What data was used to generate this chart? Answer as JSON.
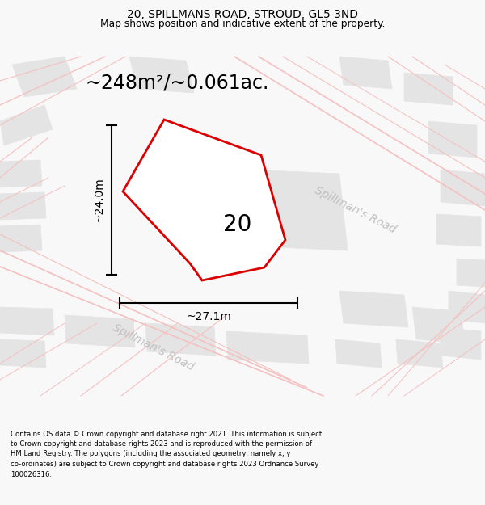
{
  "title": "20, SPILLMANS ROAD, STROUD, GL5 3ND",
  "subtitle": "Map shows position and indicative extent of the property.",
  "area_text": "~248m²/~0.061ac.",
  "label_number": "20",
  "dim_width": "~27.1m",
  "dim_height": "~24.0m",
  "road_label_upper": "Spillman's Road",
  "road_label_lower": "Spillman's Road",
  "footer_line1": "Contains OS data © Crown copyright and database right 2021. This information is subject",
  "footer_line2": "to Crown copyright and database rights 2023 and is reproduced with the permission of",
  "footer_line3": "HM Land Registry. The polygons (including the associated geometry, namely x, y",
  "footer_line4": "co-ordinates) are subject to Crown copyright and database rights 2023 Ordnance Survey",
  "footer_line5": "100026316.",
  "bg_color": "#f8f8f8",
  "map_bg": "#ffffff",
  "building_fill": "#e4e4e4",
  "building_stroke": "#e4e4e4",
  "road_line_color": "#f5c0c0",
  "plot_stroke": "#dd0000",
  "dim_color": "#000000",
  "road_text_color": "#c0c0c0",
  "header_color": "#000000",
  "footer_color": "#000000"
}
